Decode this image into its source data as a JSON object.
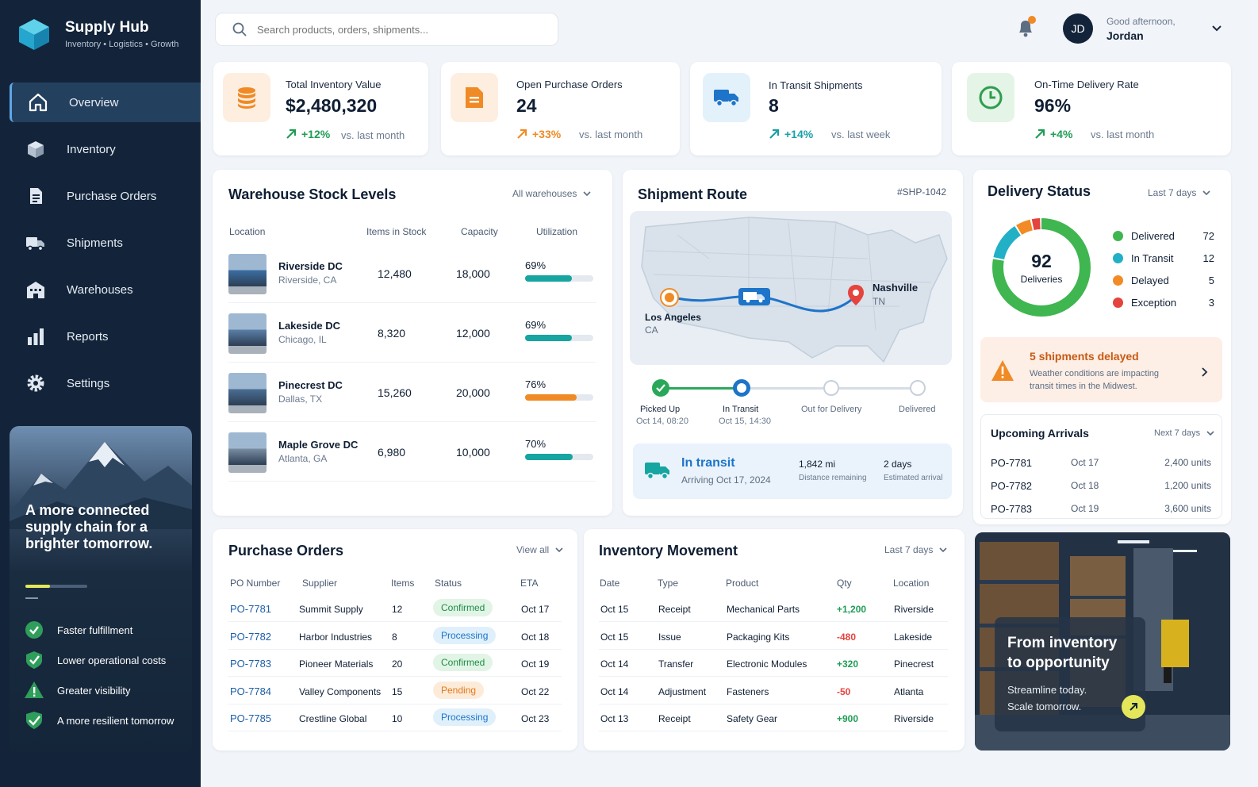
{
  "app": {
    "name": "Supply Hub",
    "tagline": "Inventory • Logistics • Growth"
  },
  "nav": [
    {
      "label": "Overview",
      "icon": "home-icon",
      "active": true
    },
    {
      "label": "Inventory",
      "icon": "box-icon"
    },
    {
      "label": "Purchase Orders",
      "icon": "document-icon"
    },
    {
      "label": "Shipments",
      "icon": "truck-icon"
    },
    {
      "label": "Warehouses",
      "icon": "building-icon"
    },
    {
      "label": "Reports",
      "icon": "bar-chart-icon"
    },
    {
      "label": "Settings",
      "icon": "gear-icon"
    }
  ],
  "promo": {
    "title": "A more connected supply chain for a brighter tomorrow.",
    "progress": 0.4,
    "benefits": [
      "Faster fulfillment",
      "Lower operational costs",
      "Greater visibility",
      "A more resilient tomorrow"
    ]
  },
  "search": {
    "placeholder": "Search products, orders, shipments..."
  },
  "user": {
    "initials": "JD",
    "greeting": "Good afternoon,",
    "name": "Jordan"
  },
  "kpis": [
    {
      "label": "Total Inventory Value",
      "value": "$2,480,320",
      "delta": "+12%",
      "compare": "vs. last month",
      "color": "#f08a24",
      "deltaColor": "#1f9d55"
    },
    {
      "label": "Open Purchase Orders",
      "value": "24",
      "delta": "+33%",
      "compare": "vs. last month",
      "color": "#f08a24",
      "deltaColor": "#f08a24"
    },
    {
      "label": "In Transit Shipments",
      "value": "8",
      "delta": "+14%",
      "compare": "vs. last week",
      "color": "#1d74c9",
      "deltaColor": "#1a9fa6"
    },
    {
      "label": "On-Time Delivery Rate",
      "value": "96%",
      "delta": "+4%",
      "compare": "vs. last month",
      "color": "#2e9e4f",
      "deltaColor": "#1f9d55"
    }
  ],
  "warehouse": {
    "title": "Warehouse Stock Levels",
    "filter": "All warehouses",
    "columns": [
      "Location",
      "Items in Stock",
      "Capacity",
      "Utilization"
    ],
    "rows": [
      {
        "name": "Riverside DC",
        "city": "Riverside, CA",
        "items": "12,480",
        "capacity": "18,000",
        "util": "69%",
        "fill": 0.69,
        "color": "#16a5a0"
      },
      {
        "name": "Lakeside DC",
        "city": "Chicago, IL",
        "items": "8,320",
        "capacity": "12,000",
        "util": "69%",
        "fill": 0.69,
        "color": "#16a5a0"
      },
      {
        "name": "Pinecrest DC",
        "city": "Dallas, TX",
        "items": "15,260",
        "capacity": "20,000",
        "util": "76%",
        "fill": 0.76,
        "color": "#f08a24"
      },
      {
        "name": "Maple Grove DC",
        "city": "Atlanta, GA",
        "items": "6,980",
        "capacity": "10,000",
        "util": "70%",
        "fill": 0.7,
        "color": "#16a5a0"
      }
    ]
  },
  "route": {
    "title": "Shipment Route",
    "id": "#SHP-1042",
    "origin": {
      "city": "Los Angeles",
      "state": "CA"
    },
    "dest": {
      "city": "Nashville",
      "state": "TN"
    },
    "steps": [
      {
        "label": "Picked Up",
        "time": "Oct 14, 08:20"
      },
      {
        "label": "In Transit",
        "time": "Oct 15, 14:30"
      },
      {
        "label": "Out for Delivery",
        "time": ""
      },
      {
        "label": "Delivered",
        "time": ""
      }
    ],
    "status": "In transit",
    "arriving": "Arriving Oct 17, 2024",
    "distance": "1,842 mi",
    "distance_label": "Distance remaining",
    "eta": "2 days",
    "eta_label": "Estimated arrival"
  },
  "delivery": {
    "title": "Delivery Status",
    "filter": "Last 7 days",
    "total": "92",
    "total_label": "Deliveries",
    "items": [
      {
        "label": "Delivered",
        "value": 72,
        "color": "#3fb650"
      },
      {
        "label": "In Transit",
        "value": 12,
        "color": "#21b0c6"
      },
      {
        "label": "Delayed",
        "value": 5,
        "color": "#f28b25"
      },
      {
        "label": "Exception",
        "value": 3,
        "color": "#e5433d"
      }
    ],
    "alert_title": "5 shipments delayed",
    "alert_text": "Weather conditions are impacting transit times in the Midwest."
  },
  "arrivals": {
    "title": "Upcoming Arrivals",
    "filter": "Next 7 days",
    "rows": [
      [
        "PO-7781",
        "Oct 17",
        "2,400 units"
      ],
      [
        "PO-7782",
        "Oct 18",
        "1,200 units"
      ],
      [
        "PO-7783",
        "Oct 19",
        "3,600 units"
      ]
    ]
  },
  "po": {
    "title": "Purchase Orders",
    "filter": "View all",
    "columns": [
      "PO Number",
      "Supplier",
      "Items",
      "Status",
      "ETA"
    ],
    "rows": [
      {
        "po": "PO-7781",
        "supplier": "Summit Supply",
        "items": "12",
        "status": "Confirmed",
        "eta": "Oct 17"
      },
      {
        "po": "PO-7782",
        "supplier": "Harbor Industries",
        "items": "8",
        "status": "Processing",
        "eta": "Oct 18"
      },
      {
        "po": "PO-7783",
        "supplier": "Pioneer Materials",
        "items": "20",
        "status": "Confirmed",
        "eta": "Oct 19"
      },
      {
        "po": "PO-7784",
        "supplier": "Valley Components",
        "items": "15",
        "status": "Pending",
        "eta": "Oct 22"
      },
      {
        "po": "PO-7785",
        "supplier": "Crestline Global",
        "items": "10",
        "status": "Processing",
        "eta": "Oct 23"
      }
    ]
  },
  "movement": {
    "title": "Inventory Movement",
    "filter": "Last 7 days",
    "columns": [
      "Date",
      "Type",
      "Product",
      "Qty",
      "Location"
    ],
    "rows": [
      {
        "date": "Oct 15",
        "type": "Receipt",
        "product": "Mechanical Parts",
        "qty": "+1,200",
        "loc": "Riverside"
      },
      {
        "date": "Oct 15",
        "type": "Issue",
        "product": "Packaging Kits",
        "qty": "-480",
        "loc": "Lakeside"
      },
      {
        "date": "Oct 14",
        "type": "Transfer",
        "product": "Electronic Modules",
        "qty": "+320",
        "loc": "Pinecrest"
      },
      {
        "date": "Oct 14",
        "type": "Adjustment",
        "product": "Fasteners",
        "qty": "-50",
        "loc": "Atlanta"
      },
      {
        "date": "Oct 13",
        "type": "Receipt",
        "product": "Safety Gear",
        "qty": "+900",
        "loc": "Riverside"
      }
    ]
  },
  "banner": {
    "title": "From inventory to opportunity",
    "text": "Streamline today. Scale tomorrow."
  }
}
